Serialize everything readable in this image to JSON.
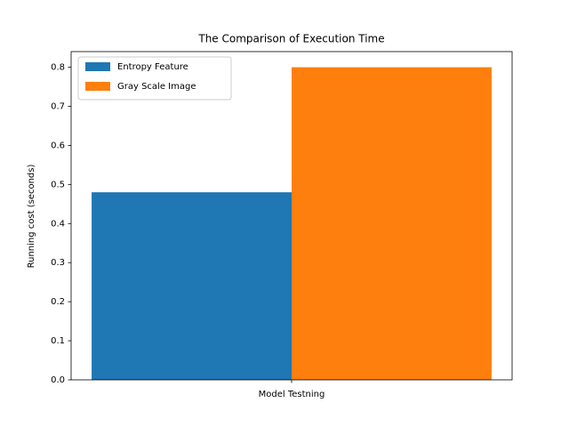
{
  "chart_data": {
    "type": "bar",
    "title": "The Comparison of Execution Time",
    "ylabel": "Running cost (seconds)",
    "categories": [
      "Model Testning"
    ],
    "series": [
      {
        "name": "Entropy Feature",
        "color": "#1f77b4",
        "values": [
          0.48
        ]
      },
      {
        "name": "Gray Scale Image",
        "color": "#ff7f0e",
        "values": [
          0.8
        ]
      }
    ],
    "ylim": [
      0,
      0.84
    ],
    "yticks": [
      {
        "value": 0,
        "label": "0.0"
      },
      0.1,
      0.2,
      0.3,
      0.4,
      0.5,
      0.6,
      0.7,
      0.8
    ],
    "legend": "upper left"
  }
}
